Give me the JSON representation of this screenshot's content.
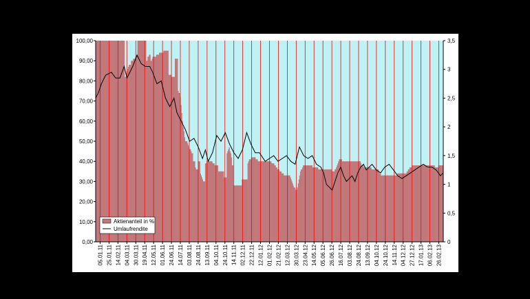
{
  "chart_data": {
    "type": "bar+line",
    "title": "",
    "xlabel": "",
    "ylabel": "",
    "y_left": {
      "min": 0,
      "max": 100,
      "step": 10,
      "ticks": [
        "0,00",
        "10,00",
        "20,00",
        "30,00",
        "40,00",
        "50,00",
        "60,00",
        "70,00",
        "80,00",
        "90,00",
        "100,00"
      ]
    },
    "y_right": {
      "min": 0,
      "max": 3.5,
      "ticks": [
        "0",
        "0,5",
        "1",
        "1,5",
        "2",
        "2,5",
        "3",
        "3,5"
      ]
    },
    "x_ticks": [
      "05.01.11",
      "25.01.11",
      "14.02.11",
      "04.03.11",
      "30.03.11",
      "19.04.11",
      "12.05.11",
      "01.06.11",
      "24.06.11",
      "14.07.11",
      "03.08.11",
      "24.08.11",
      "13.09.11",
      "04.10.11",
      "24.10.11",
      "14.11.11",
      "02.12.11",
      "22.12.11",
      "12.01.12",
      "01.02.12",
      "21.02.12",
      "12.03.12",
      "30.03.12",
      "23.04.12",
      "14.05.12",
      "05.06.12",
      "26.06.12",
      "16.07.12",
      "03.08.12",
      "24.08.12",
      "13.09.12",
      "04.10.12",
      "24.10.12",
      "14.11.12",
      "04.12.12",
      "27.12.12",
      "17.01.13",
      "06.02.13",
      "26.02.13"
    ],
    "legend": {
      "position": "bottom-left",
      "entries": [
        "Aktienanteil in %",
        "Umlaufrendite"
      ]
    },
    "grid": false,
    "plot_background": "#BFF2F5",
    "bar_color": "#C0787A",
    "divider_color": "#FF0000",
    "line_color": "#000000",
    "series": [
      {
        "name": "Aktienanteil in %",
        "axis": "left",
        "values": [
          100,
          100,
          100,
          100,
          100,
          100,
          100,
          100,
          100,
          100,
          100,
          100,
          100,
          100,
          100,
          100,
          100,
          100,
          100,
          100,
          100,
          100,
          100,
          100,
          100,
          100,
          100,
          100,
          100,
          100,
          100,
          100,
          100,
          100,
          100,
          100,
          100,
          100,
          100,
          100,
          82,
          82,
          84,
          85,
          86,
          87,
          88,
          88,
          88,
          90,
          90,
          90,
          91,
          91,
          91,
          92,
          92,
          93,
          100,
          100,
          100,
          100,
          100,
          100,
          100,
          100,
          100,
          100,
          100,
          100,
          90,
          90,
          92,
          92,
          93,
          93,
          90,
          90,
          91,
          92,
          92,
          92,
          92,
          92,
          93,
          93,
          93,
          93,
          94,
          94,
          94,
          94,
          94,
          94,
          95,
          95,
          95,
          95,
          95,
          95,
          95,
          83,
          83,
          83,
          83,
          82,
          82,
          82,
          82,
          82,
          91,
          91,
          91,
          91,
          75,
          74,
          74,
          72,
          68,
          64,
          60,
          57,
          55,
          52,
          50,
          50,
          50,
          49,
          48,
          47,
          46,
          46,
          45,
          44,
          44,
          40,
          40,
          40,
          37,
          36,
          36,
          36,
          40,
          40,
          40,
          34,
          33,
          32,
          31,
          30,
          30,
          30,
          39,
          39,
          40,
          40,
          40,
          40,
          40,
          40,
          40,
          40,
          39,
          39,
          39,
          38,
          38,
          38,
          38,
          38,
          35,
          35,
          35,
          35,
          35,
          35,
          35,
          35,
          32,
          32,
          32,
          32,
          44,
          45,
          46,
          47,
          45,
          44,
          42,
          38,
          38,
          28,
          28,
          28,
          28,
          28,
          28,
          28,
          28,
          28,
          28,
          28,
          28,
          31,
          31,
          31,
          31,
          31,
          31,
          31,
          31,
          39,
          40,
          41,
          41,
          41,
          42,
          42,
          42,
          42,
          42,
          42,
          41,
          41,
          41,
          40,
          40,
          40,
          40,
          40,
          40,
          40,
          40,
          40,
          40,
          40,
          40,
          40,
          40,
          40,
          40,
          40,
          40,
          40,
          39,
          39,
          39,
          39,
          38,
          38,
          37,
          37,
          36,
          36,
          36,
          35,
          35,
          35,
          34,
          34,
          34,
          33,
          33,
          33,
          33,
          33,
          33,
          33,
          33,
          33,
          32,
          31,
          30,
          29,
          28,
          27,
          27,
          26,
          25,
          26,
          27,
          29,
          31,
          33,
          35,
          36,
          36,
          37,
          38,
          38,
          38,
          38,
          38,
          38,
          38,
          38,
          38,
          38,
          38,
          38,
          38,
          37,
          37,
          37,
          37,
          37,
          37,
          37,
          37,
          36,
          36,
          36,
          36,
          36,
          36,
          36,
          36,
          36,
          36,
          36,
          36,
          36,
          36,
          36,
          36,
          36,
          36,
          36,
          35,
          35,
          35,
          35,
          36,
          36,
          37,
          38,
          39,
          40,
          41,
          41,
          41,
          41,
          40,
          40,
          40,
          40,
          40,
          40,
          40,
          40,
          40,
          40,
          40,
          40,
          40,
          40,
          40,
          40,
          40,
          40,
          40,
          40,
          40,
          40,
          40,
          40,
          40,
          40,
          39,
          38,
          38,
          38,
          37,
          37,
          37,
          37,
          37,
          37,
          37,
          37,
          37,
          37,
          37,
          36,
          36,
          36,
          36,
          36,
          36,
          36,
          36,
          36,
          36,
          35,
          34,
          34,
          33,
          33,
          33,
          33,
          33,
          33,
          33,
          33,
          33,
          33,
          33,
          33,
          33,
          33,
          33,
          33,
          33,
          33,
          33,
          33,
          33,
          33,
          33,
          34,
          34,
          34,
          34,
          34,
          34,
          34,
          34,
          34,
          34,
          34,
          34,
          34,
          35,
          35,
          36,
          36,
          37,
          37,
          37,
          38,
          38,
          38,
          38,
          38,
          38,
          38,
          38,
          38,
          38,
          38,
          38,
          38,
          38,
          38,
          38,
          38,
          38,
          38,
          38,
          38,
          38,
          38,
          38,
          38,
          38,
          38,
          38,
          38,
          38,
          38,
          38,
          37,
          37,
          37,
          37,
          37,
          38,
          38,
          38,
          38,
          38,
          38,
          38
        ]
      },
      {
        "name": "Umlaufrendite",
        "axis": "right",
        "points": [
          [
            0,
            2.5
          ],
          [
            4,
            2.6
          ],
          [
            8,
            2.75
          ],
          [
            14,
            2.9
          ],
          [
            22,
            2.95
          ],
          [
            28,
            2.85
          ],
          [
            34,
            2.85
          ],
          [
            40,
            3.05
          ],
          [
            44,
            2.85
          ],
          [
            52,
            3.05
          ],
          [
            58,
            3.25
          ],
          [
            64,
            3.1
          ],
          [
            70,
            3.05
          ],
          [
            76,
            3.05
          ],
          [
            80,
            2.95
          ],
          [
            86,
            2.75
          ],
          [
            92,
            2.8
          ],
          [
            98,
            2.5
          ],
          [
            104,
            2.35
          ],
          [
            110,
            2.5
          ],
          [
            114,
            2.25
          ],
          [
            120,
            2.1
          ],
          [
            126,
            1.95
          ],
          [
            132,
            1.75
          ],
          [
            138,
            1.8
          ],
          [
            144,
            1.65
          ],
          [
            150,
            1.45
          ],
          [
            154,
            1.6
          ],
          [
            158,
            1.4
          ],
          [
            164,
            1.55
          ],
          [
            170,
            1.85
          ],
          [
            176,
            1.75
          ],
          [
            182,
            1.9
          ],
          [
            188,
            1.7
          ],
          [
            194,
            1.55
          ],
          [
            200,
            1.45
          ],
          [
            206,
            1.6
          ],
          [
            212,
            1.9
          ],
          [
            218,
            1.7
          ],
          [
            224,
            1.55
          ],
          [
            230,
            1.55
          ],
          [
            238,
            1.4
          ],
          [
            244,
            1.45
          ],
          [
            250,
            1.5
          ],
          [
            256,
            1.4
          ],
          [
            262,
            1.45
          ],
          [
            268,
            1.5
          ],
          [
            274,
            1.4
          ],
          [
            280,
            1.35
          ],
          [
            286,
            1.65
          ],
          [
            292,
            1.5
          ],
          [
            298,
            1.45
          ],
          [
            304,
            1.5
          ],
          [
            310,
            1.35
          ],
          [
            316,
            1.3
          ],
          [
            320,
            1.2
          ],
          [
            324,
            1.0
          ],
          [
            328,
            0.95
          ],
          [
            332,
            0.9
          ],
          [
            336,
            1.05
          ],
          [
            340,
            1.2
          ],
          [
            344,
            1.3
          ],
          [
            348,
            1.15
          ],
          [
            352,
            1.05
          ],
          [
            356,
            1.1
          ],
          [
            360,
            1.15
          ],
          [
            364,
            1.05
          ],
          [
            368,
            1.2
          ],
          [
            372,
            1.3
          ],
          [
            376,
            1.35
          ],
          [
            380,
            1.25
          ],
          [
            384,
            1.3
          ],
          [
            388,
            1.35
          ],
          [
            394,
            1.25
          ],
          [
            400,
            1.2
          ],
          [
            406,
            1.3
          ],
          [
            412,
            1.35
          ],
          [
            418,
            1.25
          ],
          [
            424,
            1.15
          ],
          [
            430,
            1.1
          ],
          [
            436,
            1.15
          ],
          [
            442,
            1.2
          ],
          [
            448,
            1.25
          ],
          [
            454,
            1.3
          ],
          [
            460,
            1.35
          ],
          [
            466,
            1.3
          ],
          [
            472,
            1.3
          ],
          [
            478,
            1.25
          ],
          [
            484,
            1.15
          ],
          [
            488,
            1.2
          ]
        ]
      }
    ]
  }
}
